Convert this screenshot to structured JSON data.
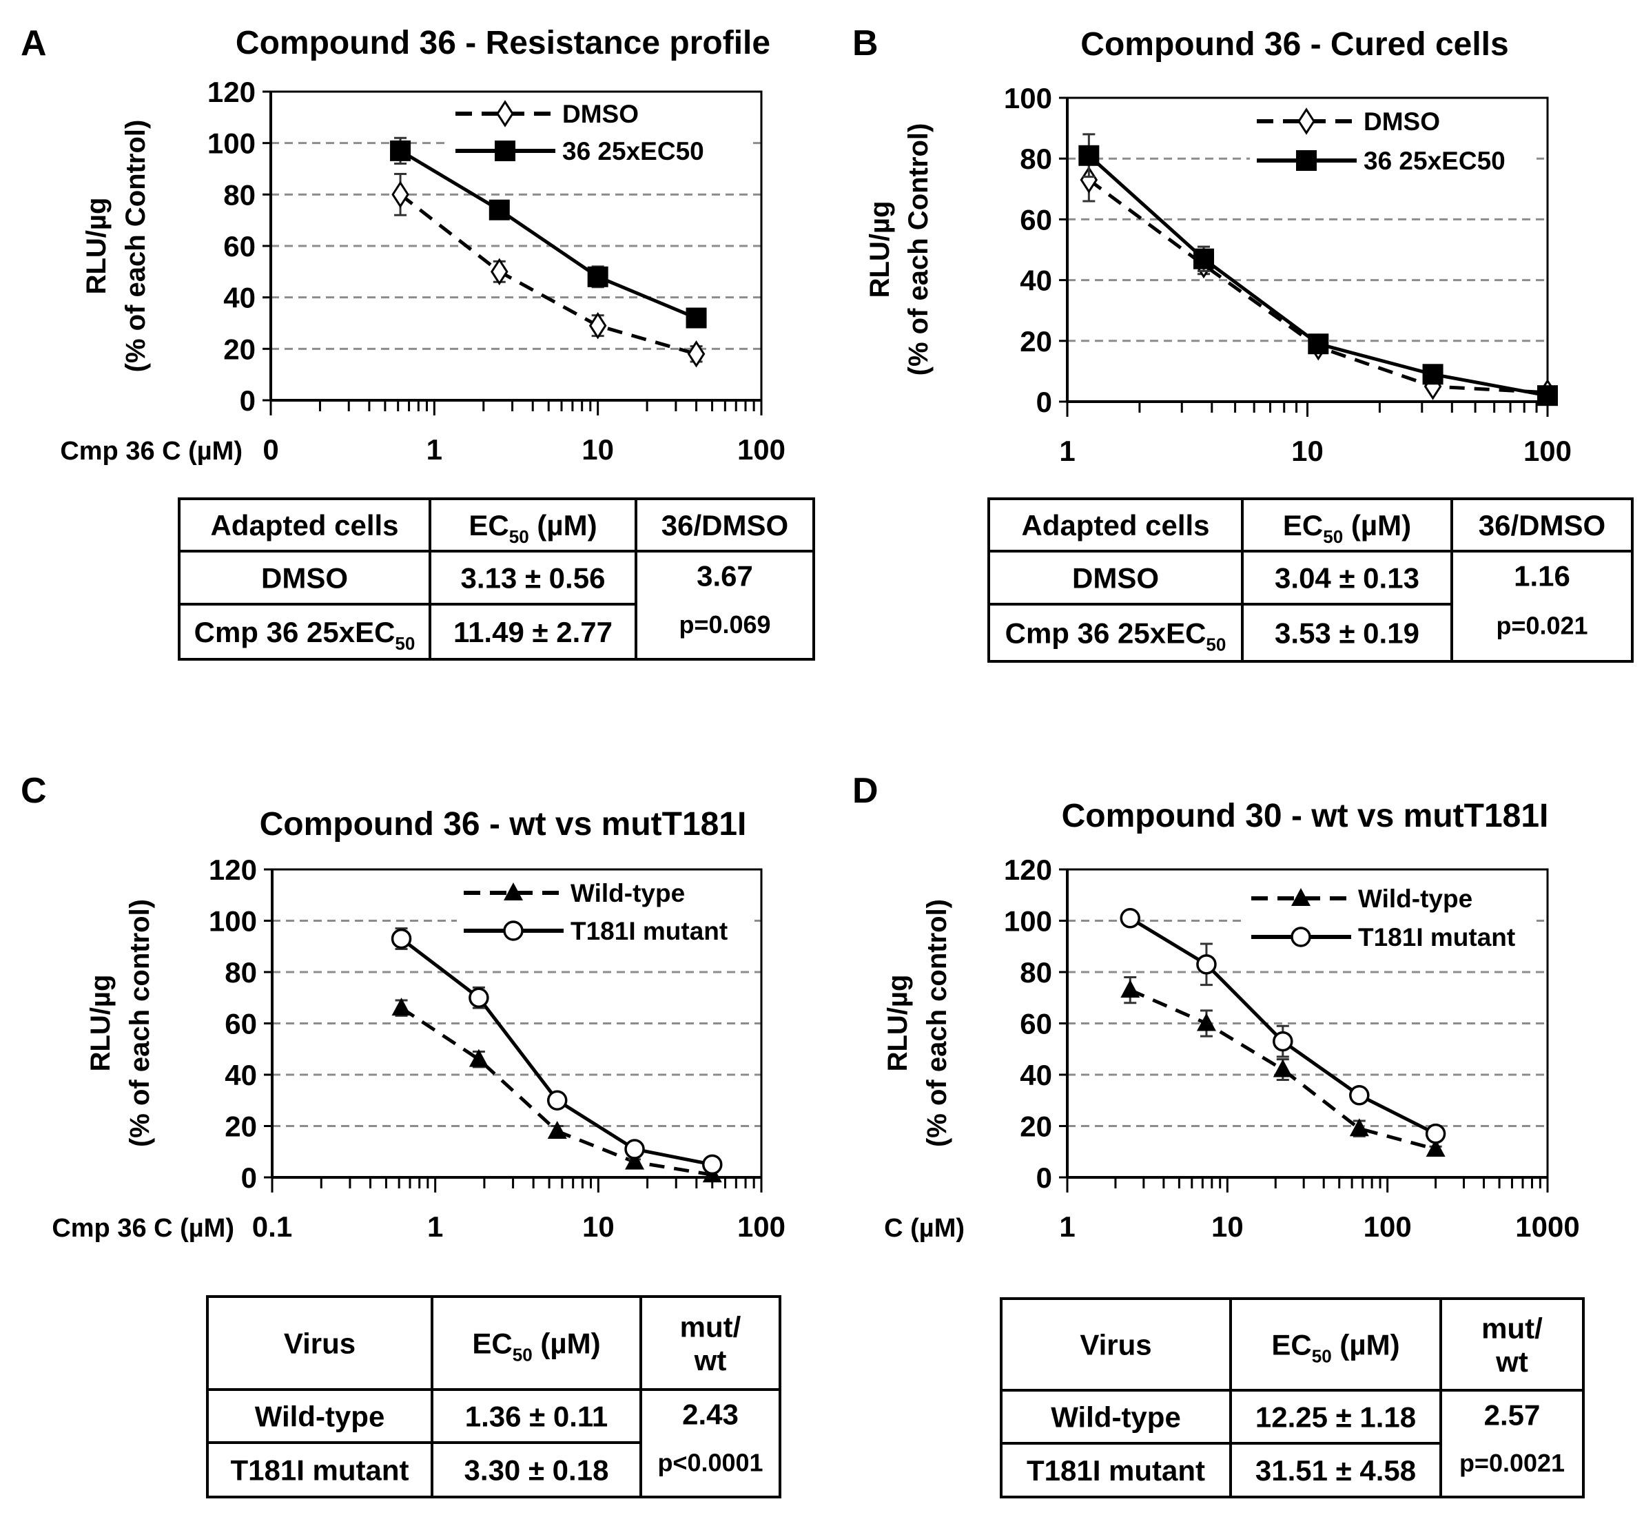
{
  "chart_data": [
    {
      "panel_label": "A",
      "type": "line",
      "title": "Compound 36 - Resistance profile",
      "xlabel": "Cmp 36 C (µM)",
      "ylabel": [
        "RLU/µg",
        "(% of each Control)"
      ],
      "xscale": "log",
      "xlim": [
        0.1,
        100
      ],
      "xticks": [
        0.1,
        1,
        10,
        100
      ],
      "xtick_labels": [
        "0",
        "1",
        "10",
        "100"
      ],
      "ylim": [
        0,
        120
      ],
      "yticks": [
        0,
        20,
        40,
        60,
        80,
        100,
        120
      ],
      "ytick_labels": [
        "0",
        "20",
        "40",
        "60",
        "80",
        "100",
        "120"
      ],
      "grid": "horizontal dashed",
      "legend": "top-right",
      "series": [
        {
          "name": "DMSO",
          "line": "dashed",
          "marker": "open-diamond",
          "x": [
            0.62,
            2.5,
            10,
            40
          ],
          "y": [
            80,
            50,
            29,
            18
          ],
          "err": [
            8,
            4,
            4,
            3
          ]
        },
        {
          "name": "36 25xEC50",
          "line": "solid",
          "marker": "filled-square",
          "x": [
            0.62,
            2.5,
            10,
            40
          ],
          "y": [
            97,
            74,
            48,
            32
          ],
          "err": [
            5,
            2,
            4,
            2
          ]
        }
      ],
      "table": {
        "header": [
          [
            [
              {
                "t": "Adapted cells"
              }
            ]
          ],
          [
            [
              {
                "t": "EC"
              },
              {
                "t": "50",
                "sub": true
              },
              {
                "t": " (µM)"
              }
            ]
          ],
          [
            [
              {
                "t": "36/DMSO"
              }
            ]
          ]
        ],
        "rows": [
          [
            [
              [
                {
                  "t": "DMSO"
                }
              ]
            ],
            [
              [
                {
                  "t": "3.13 ± 0.56"
                }
              ]
            ]
          ],
          [
            [
              [
                {
                  "t": "Cmp 36 25xEC"
                },
                {
                  "t": "50",
                  "sub": true
                }
              ]
            ],
            [
              [
                {
                  "t": "11.49 ± 2.77"
                }
              ]
            ]
          ]
        ],
        "ratio": "3.67",
        "p_value": "p=0.069"
      }
    },
    {
      "panel_label": "B",
      "type": "line",
      "title": "Compound 36 - Cured cells",
      "xlabel": "",
      "ylabel": [
        "RLU/µg",
        "(% of each Control)"
      ],
      "xscale": "log",
      "xlim": [
        1,
        100
      ],
      "xticks": [
        1,
        10,
        100
      ],
      "xtick_labels": [
        "1",
        "10",
        "100"
      ],
      "ylim": [
        0,
        100
      ],
      "yticks": [
        0,
        20,
        40,
        60,
        80,
        100
      ],
      "ytick_labels": [
        "0",
        "20",
        "40",
        "60",
        "80",
        "100"
      ],
      "grid": "horizontal dashed",
      "legend": "top-right",
      "series": [
        {
          "name": "DMSO",
          "line": "dashed",
          "marker": "open-diamond",
          "x": [
            1.23,
            3.7,
            11.1,
            33.3,
            100
          ],
          "y": [
            73,
            45,
            18,
            5,
            3
          ],
          "err": [
            7,
            3,
            2,
            1,
            1
          ]
        },
        {
          "name": "36 25xEC50",
          "line": "solid",
          "marker": "filled-square",
          "x": [
            1.23,
            3.7,
            11.1,
            33.3,
            100
          ],
          "y": [
            81,
            47,
            19,
            9,
            2
          ],
          "err": [
            7,
            4,
            2,
            1,
            1
          ]
        }
      ],
      "table": {
        "header": [
          [
            [
              {
                "t": "Adapted cells"
              }
            ]
          ],
          [
            [
              {
                "t": "EC"
              },
              {
                "t": "50",
                "sub": true
              },
              {
                "t": " (µM)"
              }
            ]
          ],
          [
            [
              {
                "t": "36/DMSO"
              }
            ]
          ]
        ],
        "rows": [
          [
            [
              [
                {
                  "t": "DMSO"
                }
              ]
            ],
            [
              [
                {
                  "t": "3.04 ± 0.13"
                }
              ]
            ]
          ],
          [
            [
              [
                {
                  "t": "Cmp 36 25xEC"
                },
                {
                  "t": "50",
                  "sub": true
                }
              ]
            ],
            [
              [
                {
                  "t": "3.53 ± 0.19"
                }
              ]
            ]
          ]
        ],
        "ratio": "1.16",
        "p_value": "p=0.021"
      }
    },
    {
      "panel_label": "C",
      "type": "line",
      "title": "Compound 36 - wt vs mutT181I",
      "xlabel": "Cmp 36 C (µM)",
      "ylabel": [
        "RLU/µg",
        "(% of each control)"
      ],
      "xscale": "log",
      "xlim": [
        0.1,
        100
      ],
      "xticks": [
        0.1,
        1,
        10,
        100
      ],
      "xtick_labels": [
        "0.1",
        "1",
        "10",
        "100"
      ],
      "ylim": [
        0,
        120
      ],
      "yticks": [
        0,
        20,
        40,
        60,
        80,
        100,
        120
      ],
      "ytick_labels": [
        "0",
        "20",
        "40",
        "60",
        "80",
        "100",
        "120"
      ],
      "grid": "horizontal dashed",
      "legend": "top-right",
      "series": [
        {
          "name": "Wild-type",
          "line": "dashed",
          "marker": "filled-triangle",
          "x": [
            0.62,
            1.85,
            5.6,
            16.7,
            50
          ],
          "y": [
            66,
            46,
            18,
            6,
            1
          ],
          "err": [
            3,
            3,
            2,
            1,
            1
          ]
        },
        {
          "name": "T181I mutant",
          "line": "solid",
          "marker": "open-circle",
          "x": [
            0.62,
            1.85,
            5.6,
            16.7,
            50
          ],
          "y": [
            93,
            70,
            30,
            11,
            5
          ],
          "err": [
            4,
            4,
            1,
            1,
            1
          ]
        }
      ],
      "table": {
        "header": [
          [
            [
              {
                "t": "Virus"
              }
            ]
          ],
          [
            [
              {
                "t": "EC"
              },
              {
                "t": "50",
                "sub": true
              },
              {
                "t": " (µM)"
              }
            ]
          ],
          [
            [
              {
                "t": "mut/"
              }
            ],
            [
              {
                "t": "wt"
              }
            ]
          ]
        ],
        "rows": [
          [
            [
              [
                {
                  "t": "Wild-type"
                }
              ]
            ],
            [
              [
                {
                  "t": "1.36 ± 0.11"
                }
              ]
            ]
          ],
          [
            [
              [
                {
                  "t": "T181I mutant"
                }
              ]
            ],
            [
              [
                {
                  "t": "3.30 ± 0.18"
                }
              ]
            ]
          ]
        ],
        "ratio": "2.43",
        "p_value": "p<0.0001"
      }
    },
    {
      "panel_label": "D",
      "type": "line",
      "title": "Compound 30 - wt vs mutT181I",
      "xlabel": "C (µM)",
      "ylabel": [
        "RLU/µg",
        "(% of each control)"
      ],
      "xscale": "log",
      "xlim": [
        1,
        1000
      ],
      "xticks": [
        1,
        10,
        100,
        1000
      ],
      "xtick_labels": [
        "1",
        "10",
        "100",
        "1000"
      ],
      "ylim": [
        0,
        120
      ],
      "yticks": [
        0,
        20,
        40,
        60,
        80,
        100,
        120
      ],
      "ytick_labels": [
        "0",
        "20",
        "40",
        "60",
        "80",
        "100",
        "120"
      ],
      "grid": "horizontal dashed",
      "legend": "top-right",
      "series": [
        {
          "name": "Wild-type",
          "line": "dashed",
          "marker": "filled-triangle",
          "x": [
            2.47,
            7.4,
            22.2,
            66.7,
            200
          ],
          "y": [
            73,
            60,
            42,
            19,
            11
          ],
          "err": [
            5,
            5,
            4,
            3,
            1
          ]
        },
        {
          "name": "T181I mutant",
          "line": "solid",
          "marker": "open-circle",
          "x": [
            2.47,
            7.4,
            22.2,
            66.7,
            200
          ],
          "y": [
            101,
            83,
            53,
            32,
            17
          ],
          "err": [
            1,
            8,
            6,
            1,
            1
          ]
        }
      ],
      "table": {
        "header": [
          [
            [
              {
                "t": "Virus"
              }
            ]
          ],
          [
            [
              {
                "t": "EC"
              },
              {
                "t": "50",
                "sub": true
              },
              {
                "t": " (µM)"
              }
            ]
          ],
          [
            [
              {
                "t": "mut/"
              }
            ],
            [
              {
                "t": "wt"
              }
            ]
          ]
        ],
        "rows": [
          [
            [
              [
                {
                  "t": "Wild-type"
                }
              ]
            ],
            [
              [
                {
                  "t": "12.25 ± 1.18"
                }
              ]
            ]
          ],
          [
            [
              [
                {
                  "t": "T181I mutant"
                }
              ]
            ],
            [
              [
                {
                  "t": "31.51 ± 4.58"
                }
              ]
            ]
          ]
        ],
        "ratio": "2.57",
        "p_value": "p=0.0021"
      }
    }
  ]
}
